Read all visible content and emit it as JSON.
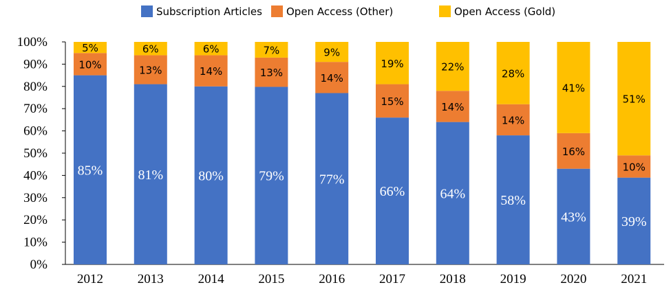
{
  "chart_data": {
    "type": "bar",
    "stacked": true,
    "categories": [
      "2012",
      "2013",
      "2014",
      "2015",
      "2016",
      "2017",
      "2018",
      "2019",
      "2020",
      "2021"
    ],
    "series": [
      {
        "name": "Subscription Articles",
        "color": "#4472C4",
        "values": [
          85,
          81,
          80,
          79,
          77,
          66,
          64,
          58,
          43,
          39
        ]
      },
      {
        "name": "Open Access (Other)",
        "color": "#ED7D31",
        "values": [
          10,
          13,
          14,
          13,
          14,
          15,
          14,
          14,
          16,
          10
        ]
      },
      {
        "name": "Open Access (Gold)",
        "color": "#FFC000",
        "values": [
          5,
          6,
          6,
          7,
          9,
          19,
          22,
          28,
          41,
          51
        ]
      }
    ],
    "ylim": [
      0,
      100
    ],
    "yticks": [
      "0%",
      "10%",
      "20%",
      "30%",
      "40%",
      "50%",
      "60%",
      "70%",
      "80%",
      "90%",
      "100%"
    ],
    "legend": "top",
    "grid": false,
    "data_labels": true,
    "label_suffix": "%"
  }
}
